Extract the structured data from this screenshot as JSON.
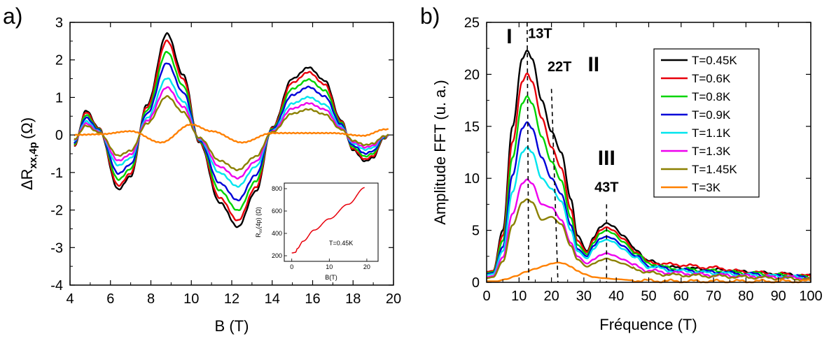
{
  "chart_data": [
    {
      "panel": "a)",
      "type": "line",
      "xlabel": "B (T)",
      "ylabel_main": "ΔR",
      "ylabel_sub": "xx,4p",
      "ylabel_unit": "(Ω)",
      "xlim": [
        4,
        20
      ],
      "ylim": [
        -4,
        3
      ],
      "xticks": [
        4,
        6,
        8,
        10,
        12,
        14,
        16,
        18,
        20
      ],
      "yticks": [
        -4,
        -3,
        -2,
        -1,
        0,
        1,
        2,
        3
      ],
      "series": [
        {
          "name": "T=0.45K",
          "color": "#000000",
          "amp": 1.0
        },
        {
          "name": "T=0.6K",
          "color": "#e8000b",
          "amp": 0.93
        },
        {
          "name": "T=0.8K",
          "color": "#00d400",
          "amp": 0.82
        },
        {
          "name": "T=0.9K",
          "color": "#0000d8",
          "amp": 0.71
        },
        {
          "name": "T=1.1K",
          "color": "#00e5ee",
          "amp": 0.56
        },
        {
          "name": "T=1.3K",
          "color": "#ee00ee",
          "amp": 0.47
        },
        {
          "name": "T=1.45K",
          "color": "#8b8000",
          "amp": 0.38
        },
        {
          "name": "T=3K",
          "color": "#ff8000",
          "amp": 0.08
        }
      ],
      "reference_curve": {
        "B": [
          4.2,
          4.8,
          5.4,
          6.4,
          7.0,
          7.8,
          8.8,
          9.6,
          10.4,
          11.4,
          12.3,
          13.2,
          14.0,
          15.0,
          15.8,
          16.6,
          17.4,
          18.0,
          18.6,
          19.0,
          19.5,
          20.0
        ],
        "dR": [
          -0.3,
          0.65,
          0.2,
          -1.45,
          -1.1,
          0.8,
          2.7,
          1.6,
          -0.2,
          -1.8,
          -2.45,
          -1.5,
          0.2,
          1.5,
          1.8,
          1.45,
          0.4,
          -0.4,
          -0.7,
          -0.6,
          -0.1,
          0.1
        ]
      },
      "T3K_curve": {
        "B": [
          4.2,
          5.5,
          7.0,
          8.5,
          10.0,
          11.0,
          12.5,
          14.0,
          15.5,
          17.0,
          18.5,
          19.6
        ],
        "dR": [
          0.0,
          0.02,
          0.1,
          -0.2,
          0.28,
          0.1,
          -0.2,
          0.05,
          0.05,
          0.05,
          -0.02,
          0.15
        ]
      },
      "inset": {
        "xlabel": "B(T)",
        "ylabel": "R",
        "ylabel_sub": "xx",
        "ylabel_unit": "(4p) (Ω)",
        "annotation": "T=0.45K",
        "xlim": [
          -2,
          23
        ],
        "ylim": [
          150,
          850
        ],
        "xticks": [
          0,
          10,
          20
        ],
        "yticks": [
          200,
          400,
          600,
          800
        ],
        "x": [
          0,
          1,
          1.5,
          3,
          6,
          10,
          15,
          19.5
        ],
        "y": [
          225,
          230,
          265,
          330,
          430,
          530,
          660,
          810
        ],
        "color": "#e8000b"
      }
    },
    {
      "panel": "b)",
      "type": "line",
      "xlabel": "Fréquence (T)",
      "ylabel": "Amplitude FFT (u. a.)",
      "xlim": [
        0,
        100
      ],
      "ylim": [
        0,
        25
      ],
      "xticks": [
        0,
        10,
        20,
        30,
        40,
        50,
        60,
        70,
        80,
        90,
        100
      ],
      "yticks": [
        0,
        5,
        10,
        15,
        20,
        25
      ],
      "legend_position": "top-right",
      "legend": [
        "T=0.45K",
        "T=0.6K",
        "T=0.8K",
        "T=0.9K",
        "T=1.1K",
        "T=1.3K",
        "T=1.45K",
        "T=3K"
      ],
      "colors": [
        "#000000",
        "#e8000b",
        "#00d400",
        "#0000d8",
        "#00e5ee",
        "#ee00ee",
        "#8b8000",
        "#ff8000"
      ],
      "series": [
        {
          "name": "T=0.45K",
          "x": [
            0,
            2,
            5,
            8,
            11,
            12.5,
            14,
            17,
            20,
            23,
            26,
            28,
            31,
            33,
            35,
            37,
            39,
            42,
            46,
            50,
            58,
            70,
            80,
            90,
            100
          ],
          "y": [
            1.0,
            1.1,
            5.0,
            15.0,
            21.5,
            22.3,
            21.5,
            17.5,
            14.5,
            12.5,
            8.0,
            4.5,
            3.0,
            4.3,
            5.3,
            5.7,
            5.4,
            4.5,
            3.2,
            2.0,
            1.4,
            1.2,
            1.0,
            0.8,
            0.6
          ]
        },
        {
          "name": "T=0.6K",
          "x": [
            0,
            2,
            5,
            8,
            11,
            12.5,
            14,
            17,
            20,
            23,
            26,
            28,
            31,
            33,
            35,
            37,
            39,
            42,
            46,
            50,
            58,
            70,
            80,
            90,
            100
          ],
          "y": [
            1.0,
            1.1,
            4.5,
            13.5,
            19.3,
            20.1,
            19.3,
            15.8,
            13.0,
            11.0,
            7.0,
            4.0,
            2.9,
            4.1,
            5.0,
            5.3,
            5.0,
            4.2,
            3.0,
            1.9,
            1.7,
            1.4,
            1.0,
            0.8,
            0.6
          ]
        },
        {
          "name": "T=0.8K",
          "x": [
            0,
            2,
            5,
            8,
            11,
            12.5,
            14,
            17,
            20,
            23,
            26,
            28,
            31,
            33,
            35,
            37,
            39,
            42,
            46,
            50,
            58,
            70,
            80,
            90,
            100
          ],
          "y": [
            0.9,
            1.0,
            4.0,
            12.0,
            17.2,
            17.9,
            17.2,
            14.0,
            11.6,
            9.8,
            6.2,
            3.6,
            2.7,
            3.8,
            4.7,
            5.0,
            4.7,
            3.9,
            2.8,
            1.8,
            1.3,
            1.1,
            0.9,
            0.7,
            0.5
          ]
        },
        {
          "name": "T=0.9K",
          "x": [
            0,
            2,
            5,
            8,
            11,
            12.5,
            14,
            17,
            20,
            23,
            26,
            28,
            31,
            33,
            35,
            37,
            39,
            42,
            46,
            50,
            58,
            70,
            80,
            90,
            100
          ],
          "y": [
            0.8,
            0.9,
            3.4,
            10.3,
            14.8,
            15.4,
            14.8,
            12.0,
            10.0,
            8.5,
            5.5,
            3.2,
            2.5,
            3.5,
            4.2,
            4.4,
            4.2,
            3.5,
            2.5,
            1.6,
            1.2,
            1.0,
            0.8,
            0.6,
            0.5
          ]
        },
        {
          "name": "T=1.1K",
          "x": [
            0,
            2,
            5,
            8,
            11,
            12.5,
            14,
            17,
            20,
            23,
            26,
            28,
            31,
            33,
            35,
            37,
            39,
            42,
            46,
            50,
            58,
            70,
            80,
            90,
            100
          ],
          "y": [
            0.7,
            0.8,
            3.0,
            8.7,
            12.5,
            13.0,
            12.5,
            10.0,
            9.0,
            7.8,
            5.0,
            3.0,
            2.3,
            3.2,
            3.9,
            4.1,
            3.9,
            3.2,
            2.3,
            1.5,
            1.1,
            0.9,
            0.7,
            0.6,
            0.4
          ]
        },
        {
          "name": "T=1.3K",
          "x": [
            0,
            2,
            5,
            8,
            11,
            12.5,
            14,
            17,
            20,
            23,
            26,
            28,
            31,
            33,
            35,
            37,
            39,
            42,
            46,
            50,
            58,
            70,
            80,
            90,
            100
          ],
          "y": [
            0.5,
            0.6,
            2.4,
            6.6,
            9.5,
            9.9,
            9.5,
            7.5,
            7.2,
            6.0,
            3.8,
            2.5,
            1.8,
            2.2,
            2.6,
            2.8,
            2.6,
            2.2,
            1.6,
            1.1,
            0.9,
            0.7,
            0.6,
            0.5,
            0.4
          ]
        },
        {
          "name": "T=1.45K",
          "x": [
            0,
            2,
            5,
            8,
            11,
            12.5,
            14,
            17,
            20,
            23,
            26,
            28,
            31,
            33,
            35,
            37,
            39,
            42,
            46,
            50,
            58,
            70,
            80,
            90,
            100
          ],
          "y": [
            0.4,
            0.5,
            2.0,
            5.5,
            7.7,
            8.0,
            7.7,
            6.0,
            6.3,
            5.6,
            3.5,
            2.2,
            1.5,
            1.8,
            2.1,
            2.3,
            2.1,
            1.8,
            1.3,
            0.9,
            0.7,
            0.6,
            0.5,
            0.4,
            0.3
          ]
        },
        {
          "name": "T=3K",
          "x": [
            0,
            3,
            6,
            9,
            12,
            15,
            18,
            20,
            22,
            24,
            26,
            28,
            30,
            33,
            36,
            40,
            45,
            50,
            60,
            70,
            80,
            90,
            100
          ],
          "y": [
            0.1,
            0.1,
            0.3,
            0.6,
            1.0,
            1.3,
            1.6,
            1.8,
            1.9,
            1.8,
            1.5,
            1.1,
            0.8,
            0.5,
            0.4,
            0.3,
            0.2,
            0.15,
            0.1,
            0.1,
            0.1,
            0.1,
            0.1
          ]
        }
      ],
      "annotations": [
        {
          "text": "I",
          "x": 7,
          "y": 23
        },
        {
          "text": "13T",
          "x": 16.5,
          "y": 23.5
        },
        {
          "text": "22T",
          "x": 22.5,
          "y": 20.3
        },
        {
          "text": "II",
          "x": 33,
          "y": 20.3
        },
        {
          "text": "III",
          "x": 37,
          "y": 11.3
        },
        {
          "text": "43T",
          "x": 37,
          "y": 8.7
        }
      ],
      "dashed_lines": [
        {
          "x1": 12.5,
          "y1": 25,
          "x2": 13,
          "y2": 0
        },
        {
          "x1": 20,
          "y1": 18.6,
          "x2": 22,
          "y2": 0
        },
        {
          "x1": 37,
          "y1": 7.5,
          "x2": 37,
          "y2": 0
        }
      ]
    }
  ]
}
